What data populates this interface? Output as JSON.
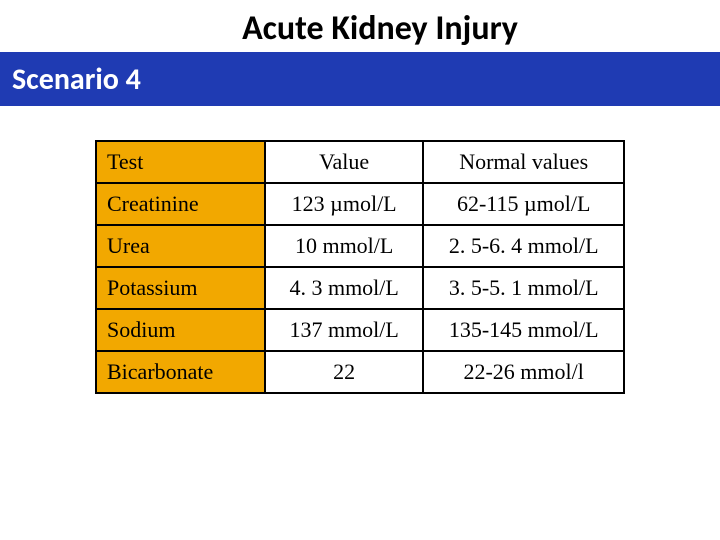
{
  "header": {
    "title": "Acute Kidney Injury",
    "subtitle": "Scenario 4",
    "bar_color": "#1f3bb3",
    "title_color": "#000000",
    "subtitle_color": "#ffffff",
    "title_fontsize": 34,
    "subtitle_fontsize": 30
  },
  "table": {
    "type": "table",
    "header_bg": "#f2a800",
    "cell_bg": "#ffffff",
    "border_color": "#000000",
    "border_width": 2,
    "font_family": "Times New Roman",
    "font_size": 22,
    "columns": [
      {
        "key": "test",
        "label": "Test",
        "align": "left",
        "width_pct": 32
      },
      {
        "key": "value",
        "label": "Value",
        "align": "center",
        "width_pct": 30
      },
      {
        "key": "normal",
        "label": "Normal values",
        "align": "center",
        "width_pct": 38
      }
    ],
    "rows": [
      {
        "test": "Creatinine",
        "value": "123 µmol/L",
        "normal": "62-115 µmol/L"
      },
      {
        "test": "Urea",
        "value": "10 mmol/L",
        "normal": "2. 5-6. 4 mmol/L"
      },
      {
        "test": "Potassium",
        "value": "4. 3 mmol/L",
        "normal": "3. 5-5. 1 mmol/L"
      },
      {
        "test": "Sodium",
        "value": "137 mmol/L",
        "normal": "135-145 mmol/L"
      },
      {
        "test": "Bicarbonate",
        "value": "22",
        "normal": "22-26 mmol/l"
      }
    ]
  }
}
